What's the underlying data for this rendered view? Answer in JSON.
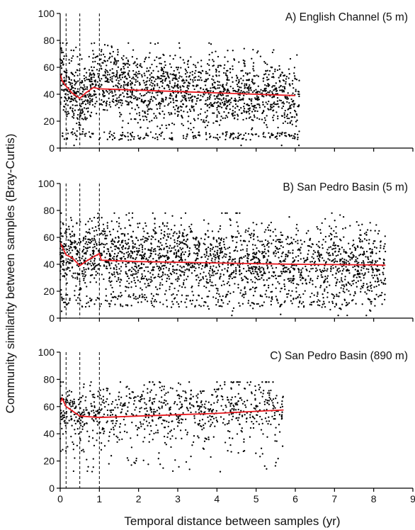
{
  "figure": {
    "ylabel": "Community similarity between samples (Bray-Curtis)",
    "xlabel": "Temporal distance between samples (yr)",
    "x_ticks": [
      "0",
      "1",
      "2",
      "3",
      "4",
      "5",
      "6",
      "7",
      "8",
      "9"
    ],
    "y_ticks": [
      "0",
      "20",
      "40",
      "60",
      "80",
      "100"
    ],
    "colors": {
      "points": "#000000",
      "trend": "#e8191f",
      "axes": "#000000",
      "dashed": "#000000"
    }
  },
  "chart_data": [
    {
      "type": "scatter",
      "title": "A) English Channel (5 m)",
      "xlabel": "Temporal distance between samples (yr)",
      "ylabel": "Community similarity between samples (Bray-Curtis)",
      "xlim": [
        0,
        9
      ],
      "ylim": [
        0,
        100
      ],
      "vlines_x": [
        0.15,
        0.5,
        1.0
      ],
      "trend_line": {
        "x": [
          0,
          0.05,
          0.15,
          0.3,
          0.5,
          0.65,
          0.85,
          1.0,
          1.5,
          2,
          3,
          4,
          5,
          6
        ],
        "y": [
          55,
          50,
          46,
          41,
          37,
          41,
          45,
          44,
          43.5,
          43,
          42,
          41,
          40,
          39
        ]
      },
      "scatter_summary": {
        "x_range": [
          0,
          6.1
        ],
        "mean_curve": {
          "x": [
            0,
            0.15,
            0.3,
            0.5,
            0.65,
            0.85,
            1.0,
            2,
            3,
            4,
            5,
            6
          ],
          "y": [
            56,
            46,
            41,
            37,
            42,
            47,
            50,
            44,
            43,
            41,
            40,
            39
          ]
        },
        "spread": 13,
        "low_band_y": [
          6,
          12
        ],
        "point_count": 2000
      }
    },
    {
      "type": "scatter",
      "title": "B) San Pedro Basin (5 m)",
      "xlabel": "Temporal distance between samples (yr)",
      "ylabel": "Community similarity between samples (Bray-Curtis)",
      "xlim": [
        0,
        9
      ],
      "ylim": [
        0,
        100
      ],
      "vlines_x": [
        0.15,
        0.5,
        1.0
      ],
      "trend_line": {
        "x": [
          0,
          0.15,
          0.3,
          0.5,
          0.7,
          1.0,
          1.05,
          2,
          3,
          4,
          5,
          6,
          7,
          8,
          8.3
        ],
        "y": [
          56,
          47,
          45,
          39,
          43,
          48,
          43,
          42,
          41.5,
          41,
          40.5,
          40,
          39.8,
          39.5,
          39.3
        ]
      },
      "scatter_summary": {
        "x_range": [
          0,
          8.3
        ],
        "mean_curve": {
          "x": [
            0,
            0.5,
            1,
            2,
            3,
            4,
            5,
            6,
            7,
            8.3
          ],
          "y": [
            50,
            45,
            48,
            45,
            44,
            42,
            41,
            40,
            39,
            39
          ]
        },
        "spread": 14,
        "low_band_y": [
          8,
          18
        ],
        "point_count": 2500
      }
    },
    {
      "type": "scatter",
      "title": "C) San Pedro Basin (890 m)",
      "xlabel": "Temporal distance between samples (yr)",
      "ylabel": "Community similarity between samples (Bray-Curtis)",
      "xlim": [
        0,
        9
      ],
      "ylim": [
        0,
        100
      ],
      "vlines_x": [
        0.15,
        0.5,
        1.0
      ],
      "trend_line": {
        "x": [
          0,
          0.05,
          0.15,
          0.3,
          0.5,
          1.0,
          2,
          3,
          4,
          5,
          5.7
        ],
        "y": [
          63,
          66,
          60,
          57,
          53,
          52,
          53,
          54,
          55,
          56.5,
          57.5
        ]
      },
      "scatter_summary": {
        "x_range": [
          0,
          5.7
        ],
        "mean_curve": {
          "x": [
            0,
            0.5,
            1,
            2,
            3,
            4,
            5,
            5.7
          ],
          "y": [
            60,
            55,
            54,
            56,
            57,
            58,
            60,
            61
          ]
        },
        "spread": 11,
        "low_band_y": [
          12,
          40
        ],
        "point_count": 900
      }
    }
  ]
}
